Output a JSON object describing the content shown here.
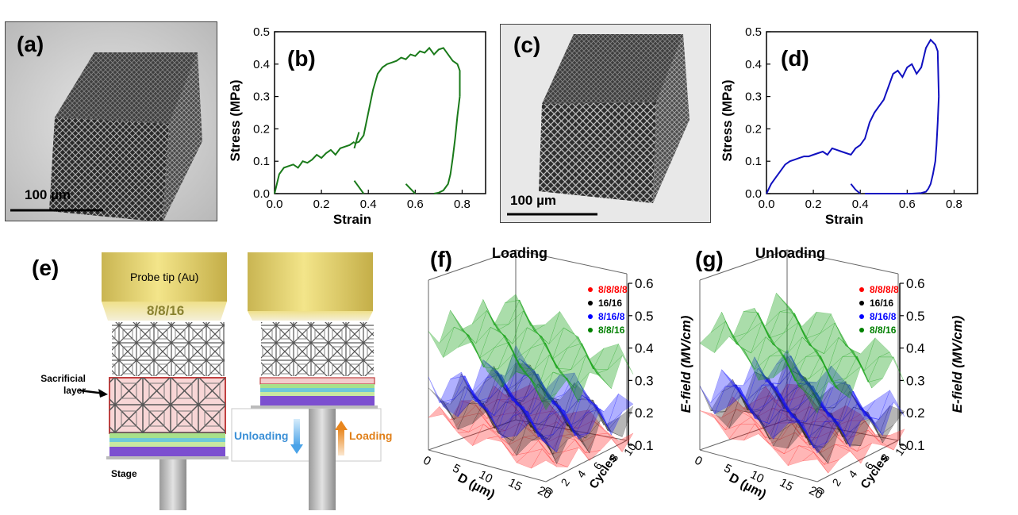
{
  "panels": {
    "a": {
      "label": "(a)",
      "scale": "100 µm"
    },
    "b": {
      "label": "(b)"
    },
    "c": {
      "label": "(c)",
      "scale": "100 µm"
    },
    "d": {
      "label": "(d)"
    },
    "e": {
      "label": "(e)",
      "probe": "Probe tip (Au)",
      "config": "8/8/16",
      "sacrificial": "Sacrificial layer",
      "sacrificial_l1": "Sacrificial",
      "sacrificial_l2": "layer",
      "stage": "Stage",
      "unloading": "Unloading",
      "loading": "Loading"
    },
    "f": {
      "label": "(f)",
      "title": "Loading"
    },
    "g": {
      "label": "(g)",
      "title": "Unloading"
    }
  },
  "surface_axes": {
    "zlabel": "E-field (MV/cm)",
    "xlabel": "D (µm)",
    "ylabel": "Cycles",
    "zticks": [
      "0.1",
      "0.2",
      "0.3",
      "0.4",
      "0.5",
      "0.6"
    ],
    "xticks": [
      "0",
      "5",
      "10",
      "15",
      "20"
    ],
    "yticks": [
      "0",
      "2",
      "4",
      "6",
      "8",
      "10"
    ],
    "legend": [
      {
        "name": "8/8/8/8",
        "color": "#ff0000"
      },
      {
        "name": "16/16",
        "color": "#000000"
      },
      {
        "name": "8/16/8",
        "color": "#0000ff"
      },
      {
        "name": "8/8/16",
        "color": "#008000"
      }
    ]
  },
  "chart_data": [
    {
      "type": "line",
      "panel": "b",
      "xlabel": "Strain",
      "ylabel": "Stress (MPa)",
      "xlim": [
        0.0,
        0.9
      ],
      "ylim": [
        0.0,
        0.5
      ],
      "xticks": [
        "0.0",
        "0.2",
        "0.4",
        "0.6",
        "0.8"
      ],
      "yticks": [
        "0.0",
        "0.1",
        "0.2",
        "0.3",
        "0.4",
        "0.5"
      ],
      "color": "#1a7a1a",
      "series": [
        {
          "x": [
            0.0,
            0.02,
            0.04,
            0.06,
            0.08,
            0.1,
            0.12,
            0.14,
            0.16,
            0.18,
            0.2,
            0.22,
            0.24,
            0.26,
            0.28,
            0.3,
            0.32,
            0.34
          ],
          "y": [
            0.0,
            0.06,
            0.08,
            0.085,
            0.09,
            0.08,
            0.1,
            0.095,
            0.105,
            0.12,
            0.11,
            0.125,
            0.135,
            0.12,
            0.14,
            0.145,
            0.15,
            0.16
          ]
        },
        {
          "x": [
            0.34,
            0.36
          ],
          "y": [
            0.14,
            0.19
          ]
        },
        {
          "x": [
            0.34,
            0.36,
            0.38,
            0.4,
            0.42,
            0.44,
            0.46,
            0.48,
            0.5,
            0.52,
            0.54,
            0.56,
            0.58,
            0.6,
            0.62,
            0.64,
            0.66,
            0.68,
            0.7,
            0.72,
            0.74,
            0.76,
            0.78,
            0.79,
            0.79
          ],
          "y": [
            0.155,
            0.16,
            0.18,
            0.25,
            0.32,
            0.37,
            0.39,
            0.4,
            0.405,
            0.41,
            0.42,
            0.415,
            0.43,
            0.425,
            0.44,
            0.435,
            0.45,
            0.43,
            0.445,
            0.45,
            0.43,
            0.41,
            0.4,
            0.38,
            0.3
          ]
        },
        {
          "x": [
            0.79,
            0.78,
            0.77,
            0.76,
            0.75,
            0.74,
            0.72,
            0.7,
            0.68
          ],
          "y": [
            0.3,
            0.24,
            0.17,
            0.11,
            0.06,
            0.03,
            0.01,
            0.003,
            0.0
          ]
        },
        {
          "x": [
            0.34,
            0.36,
            0.38
          ],
          "y": [
            0.04,
            0.02,
            0.0
          ]
        },
        {
          "x": [
            0.56,
            0.58,
            0.6
          ],
          "y": [
            0.03,
            0.015,
            0.0
          ]
        }
      ]
    },
    {
      "type": "line",
      "panel": "d",
      "xlabel": "Strain",
      "ylabel": "Stress (MPa)",
      "xlim": [
        0.0,
        0.9
      ],
      "ylim": [
        0.0,
        0.5
      ],
      "xticks": [
        "0.0",
        "0.2",
        "0.4",
        "0.6",
        "0.8"
      ],
      "yticks": [
        "0.0",
        "0.1",
        "0.2",
        "0.3",
        "0.4",
        "0.5"
      ],
      "color": "#1010c0",
      "series": [
        {
          "x": [
            0.0,
            0.02,
            0.04,
            0.06,
            0.08,
            0.1,
            0.12,
            0.14,
            0.16,
            0.18,
            0.2,
            0.22,
            0.24,
            0.26,
            0.28,
            0.3,
            0.32,
            0.34,
            0.36,
            0.38,
            0.4,
            0.42,
            0.44,
            0.46,
            0.48,
            0.5,
            0.52,
            0.54,
            0.56,
            0.58,
            0.6,
            0.62,
            0.64,
            0.66,
            0.68,
            0.7,
            0.72,
            0.73,
            0.735
          ],
          "y": [
            0.0,
            0.03,
            0.05,
            0.07,
            0.09,
            0.1,
            0.105,
            0.11,
            0.115,
            0.115,
            0.12,
            0.125,
            0.13,
            0.12,
            0.14,
            0.135,
            0.13,
            0.125,
            0.12,
            0.14,
            0.15,
            0.17,
            0.22,
            0.25,
            0.27,
            0.29,
            0.33,
            0.37,
            0.38,
            0.36,
            0.39,
            0.4,
            0.37,
            0.39,
            0.45,
            0.475,
            0.46,
            0.44,
            0.3
          ]
        },
        {
          "x": [
            0.735,
            0.73,
            0.725,
            0.72,
            0.71,
            0.7,
            0.69,
            0.68,
            0.66,
            0.62,
            0.55,
            0.48,
            0.42
          ],
          "y": [
            0.3,
            0.22,
            0.15,
            0.1,
            0.06,
            0.03,
            0.015,
            0.006,
            0.002,
            0.0,
            0.0,
            0.0,
            0.0
          ]
        },
        {
          "x": [
            0.36,
            0.38,
            0.4
          ],
          "y": [
            0.03,
            0.012,
            0.0
          ]
        }
      ]
    }
  ]
}
